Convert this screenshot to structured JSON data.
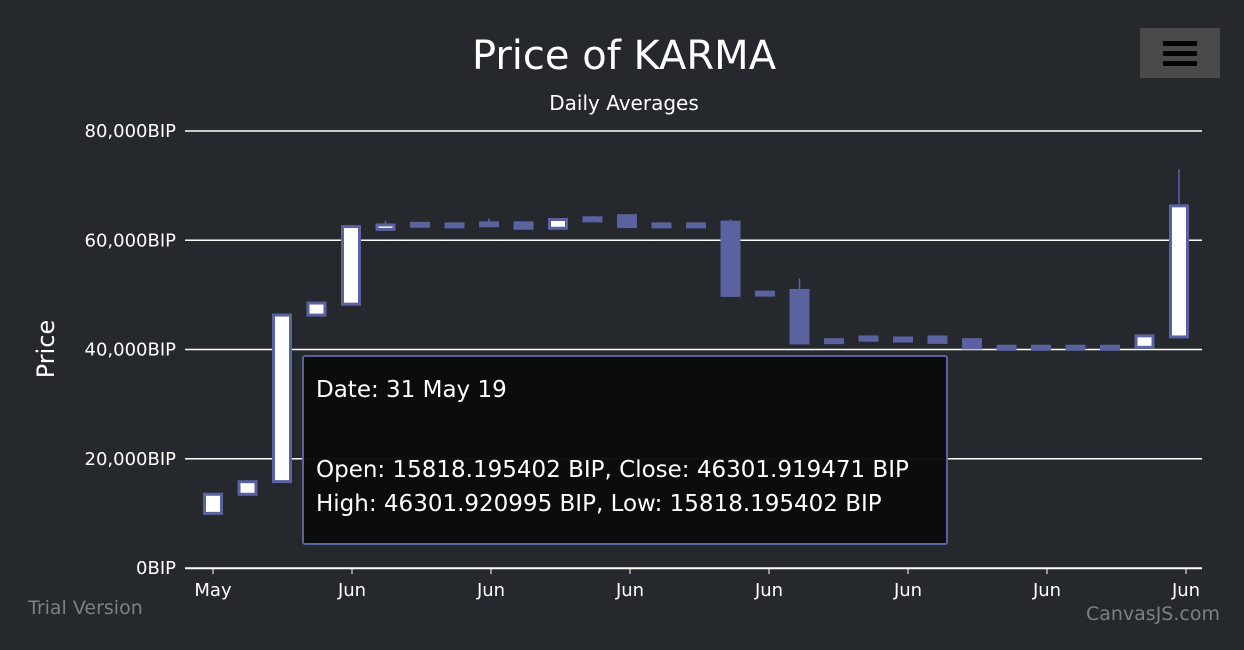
{
  "chart_data": {
    "type": "candlestick",
    "title": "Price of KARMA",
    "subtitle": "Daily Averages",
    "ylabel": "Price",
    "ylim": [
      0,
      80000
    ],
    "yticks": [
      "0BIP",
      "20,000BIP",
      "40,000BIP",
      "60,000BIP",
      "80,000BIP"
    ],
    "xticks": [
      "May",
      "Jun",
      "Jun",
      "Jun",
      "Jun",
      "Jun",
      "Jun",
      "Jun"
    ],
    "grid": true,
    "colors": {
      "rising": "#ffffff",
      "falling": "#5a62a0",
      "border": "#5a62a0",
      "background": "#25282c",
      "grid": "#ffffff"
    },
    "candles": [
      {
        "o": 10000,
        "h": 13500,
        "l": 10000,
        "c": 13500
      },
      {
        "o": 13500,
        "h": 15800,
        "l": 13500,
        "c": 15800
      },
      {
        "o": 15818.195402,
        "h": 46301.920995,
        "l": 15818.195402,
        "c": 46301.919471
      },
      {
        "o": 46300,
        "h": 48500,
        "l": 46300,
        "c": 48500
      },
      {
        "o": 48300,
        "h": 62500,
        "l": 48300,
        "c": 62500
      },
      {
        "o": 62000,
        "h": 63600,
        "l": 62000,
        "c": 62800
      },
      {
        "o": 62700,
        "h": 63300,
        "l": 62500,
        "c": 63100
      },
      {
        "o": 63000,
        "h": 63300,
        "l": 62800,
        "c": 62900
      },
      {
        "o": 63200,
        "h": 64000,
        "l": 62500,
        "c": 62700
      },
      {
        "o": 63200,
        "h": 63400,
        "l": 62000,
        "c": 62200
      },
      {
        "o": 62200,
        "h": 64000,
        "l": 62200,
        "c": 63800
      },
      {
        "o": 63900,
        "h": 64500,
        "l": 63500,
        "c": 64100
      },
      {
        "o": 64500,
        "h": 64700,
        "l": 62300,
        "c": 62500
      },
      {
        "o": 63000,
        "h": 63100,
        "l": 62400,
        "c": 62600
      },
      {
        "o": 63000,
        "h": 63300,
        "l": 62300,
        "c": 62500
      },
      {
        "o": 63300,
        "h": 63800,
        "l": 49800,
        "c": 49900
      },
      {
        "o": 50500,
        "h": 50800,
        "l": 50100,
        "c": 50200
      },
      {
        "o": 50800,
        "h": 53000,
        "l": 41000,
        "c": 41200
      },
      {
        "o": 41500,
        "h": 42100,
        "l": 41300,
        "c": 41800
      },
      {
        "o": 42300,
        "h": 42400,
        "l": 41500,
        "c": 41700
      },
      {
        "o": 42100,
        "h": 42300,
        "l": 41700,
        "c": 41900
      },
      {
        "o": 42300,
        "h": 42400,
        "l": 41200,
        "c": 41300
      },
      {
        "o": 41800,
        "h": 42000,
        "l": 40200,
        "c": 40300
      },
      {
        "o": 40600,
        "h": 40700,
        "l": 40100,
        "c": 40200
      },
      {
        "o": 40600,
        "h": 40700,
        "l": 40200,
        "c": 40300
      },
      {
        "o": 40600,
        "h": 40700,
        "l": 40200,
        "c": 40300
      },
      {
        "o": 40600,
        "h": 40700,
        "l": 40200,
        "c": 40300
      },
      {
        "o": 40400,
        "h": 42600,
        "l": 40400,
        "c": 42500
      },
      {
        "o": 42300,
        "h": 73000,
        "l": 42300,
        "c": 66300
      }
    ]
  },
  "tooltip": {
    "date_line": "Date: 31 May 19",
    "open_close_line": "Open: 15818.195402 BIP, Close: 46301.919471 BIP",
    "high_low_line": "High: 46301.920995 BIP, Low: 15818.195402 BIP"
  },
  "watermarks": {
    "trial": "Trial Version",
    "credit": "CanvasJS.com"
  },
  "menu": {
    "icon": "hamburger-menu-icon"
  }
}
